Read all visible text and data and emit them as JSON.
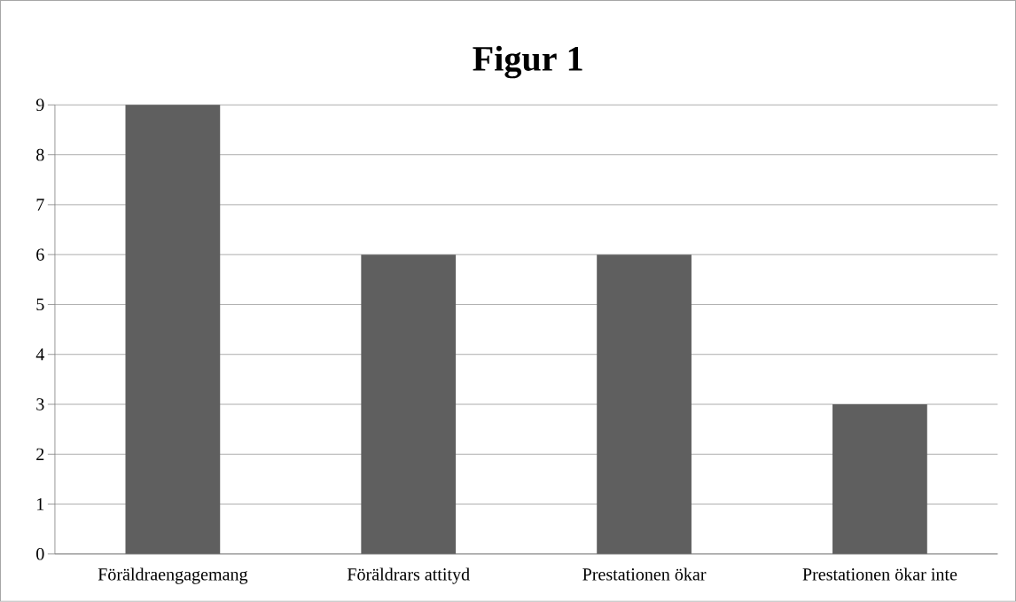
{
  "chart_data": {
    "type": "bar",
    "title": "Figur 1",
    "categories": [
      "Föräldraengagemang",
      "Föräldrars attityd",
      "Prestationen ökar",
      "Prestationen ökar inte"
    ],
    "values": [
      9,
      6,
      6,
      3
    ],
    "color": "#5f5f5f",
    "ylim": [
      0,
      9
    ],
    "yticks": [
      0,
      1,
      2,
      3,
      4,
      5,
      6,
      7,
      8,
      9
    ],
    "grid": "y"
  }
}
